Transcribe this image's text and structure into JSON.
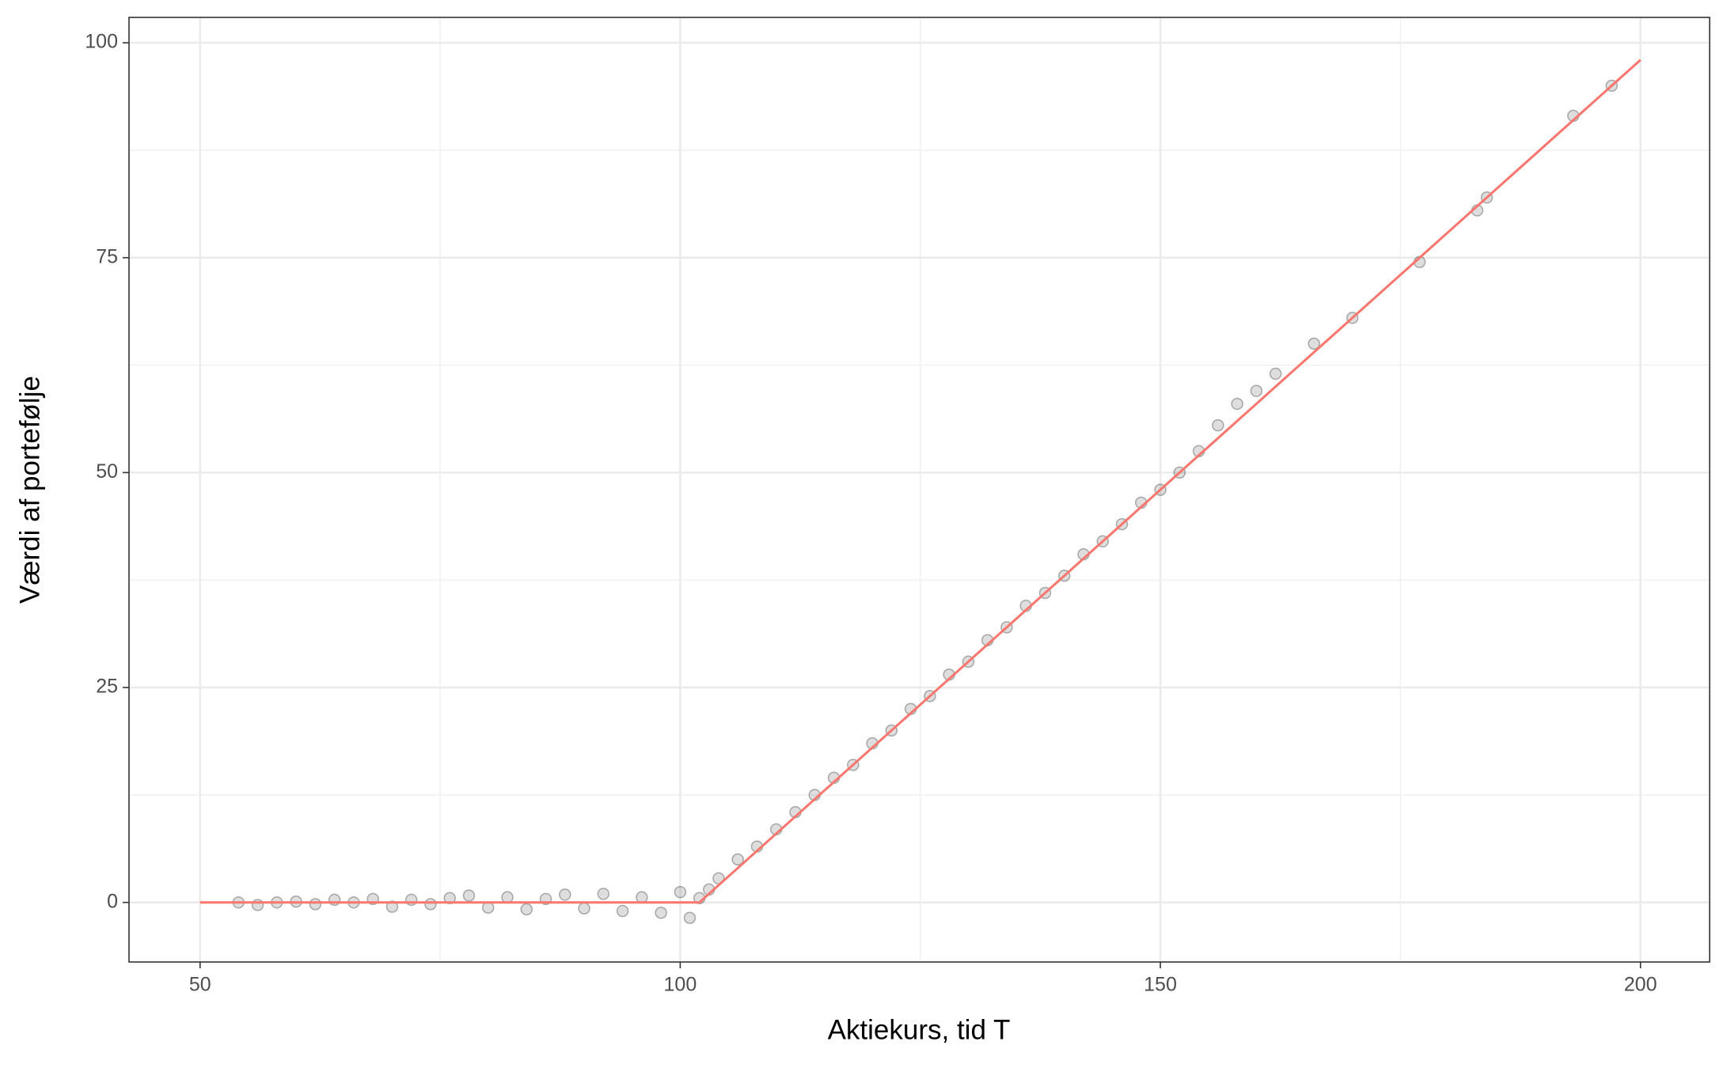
{
  "chart_data": {
    "type": "scatter",
    "x_label": "Aktiekurs, tid T",
    "y_label": "Værdi af portefølje",
    "xlim": [
      42.6,
      207.2
    ],
    "ylim": [
      -6.93,
      102.95
    ],
    "xticks": [
      50,
      100,
      150,
      200
    ],
    "yticks": [
      0,
      25,
      50,
      75,
      100
    ],
    "xminorticks": [
      75,
      125,
      175
    ],
    "yminorticks": [
      12.5,
      37.5,
      62.5,
      87.5
    ],
    "grid": true,
    "points": {
      "color": "#000000",
      "x": [
        54,
        56,
        58,
        60,
        62,
        64,
        66,
        68,
        70,
        72,
        74,
        76,
        78,
        80,
        82,
        84,
        86,
        88,
        90,
        92,
        94,
        96,
        98,
        100,
        101,
        102,
        103,
        104,
        106,
        108,
        110,
        112,
        114,
        116,
        118,
        120,
        122,
        124,
        126,
        128,
        130,
        132,
        134,
        136,
        138,
        140,
        142,
        144,
        146,
        148,
        150,
        152,
        154,
        156,
        158,
        160,
        162,
        166,
        170,
        177,
        183,
        184,
        193,
        197
      ],
      "values": [
        0,
        -0.3,
        0,
        0.1,
        -0.2,
        0.3,
        0,
        0.4,
        -0.5,
        0.3,
        -0.2,
        0.5,
        0.8,
        -0.6,
        0.6,
        -0.8,
        0.4,
        0.9,
        -0.7,
        1.0,
        -1.0,
        0.6,
        -1.2,
        1.2,
        -1.8,
        0.5,
        1.5,
        2.8,
        5,
        6.5,
        8.5,
        10.5,
        12.5,
        14.5,
        16,
        18.5,
        20,
        22.5,
        24,
        26.5,
        28,
        30.5,
        32,
        34.5,
        36,
        38,
        40.5,
        42,
        44,
        46.5,
        48,
        50,
        52.5,
        55.5,
        58,
        59.5,
        61.5,
        65,
        68,
        74.5,
        80.5,
        82,
        91.5,
        95
      ]
    },
    "line": {
      "color": "#f8766d",
      "x": [
        50,
        102,
        200
      ],
      "values": [
        0,
        0,
        98
      ]
    }
  }
}
